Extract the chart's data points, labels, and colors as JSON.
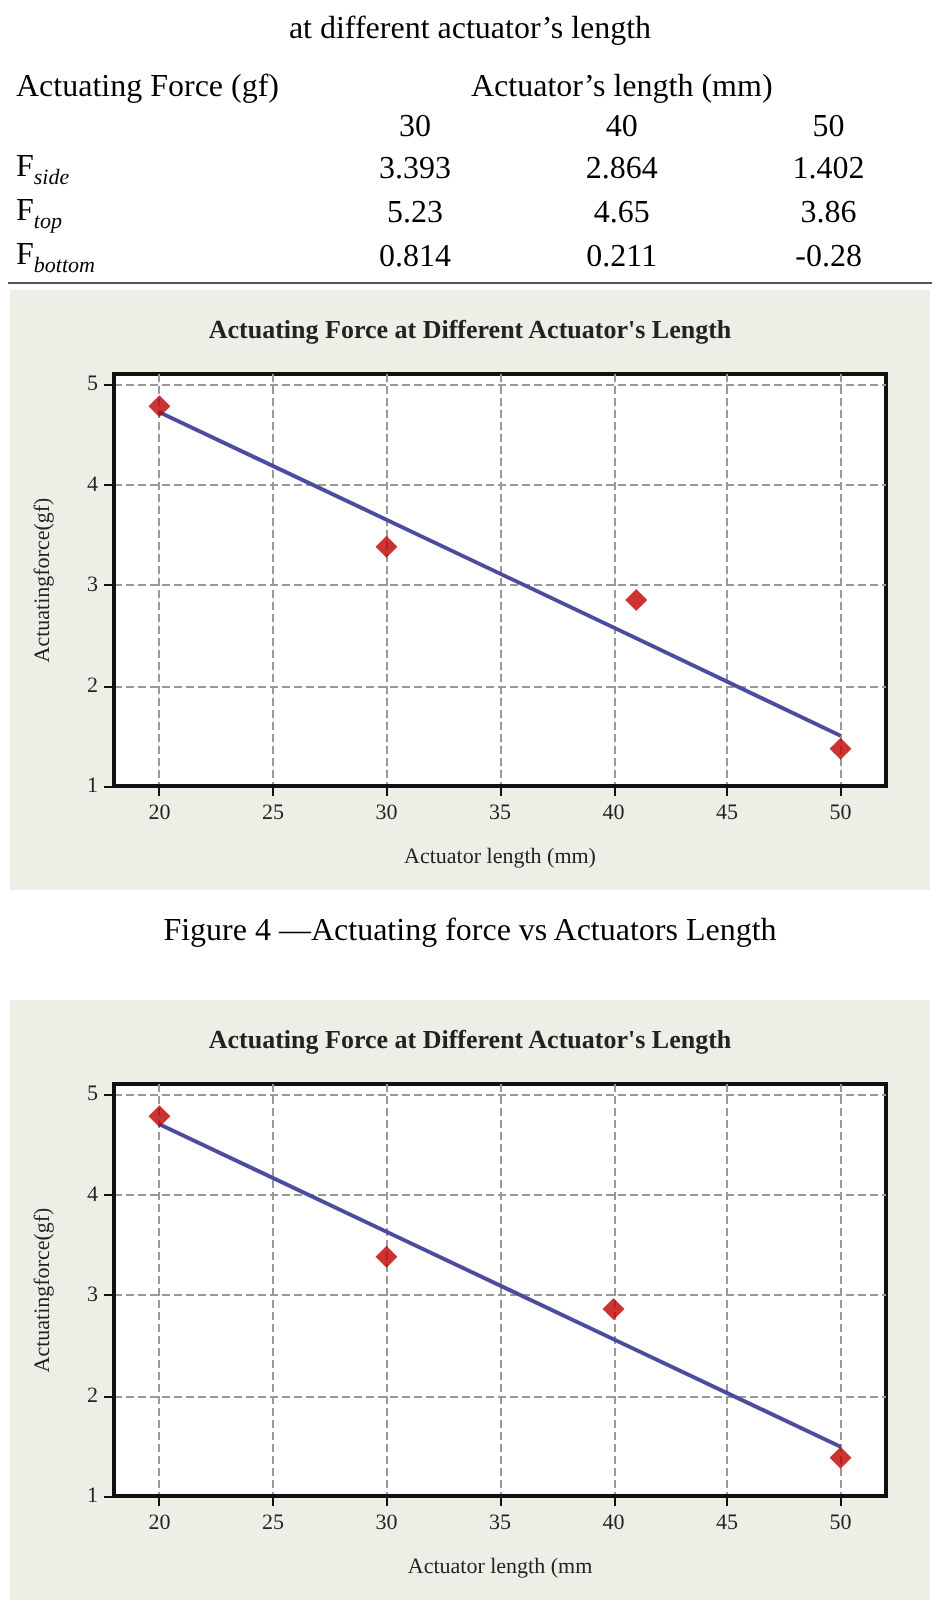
{
  "chart_data": [
    {
      "type": "heatmap",
      "title": "at different actuator’s length",
      "xlabel": "Actuator’s length (mm)",
      "ylabel": "Actuating Force (gf)",
      "categories": [
        "30",
        "40",
        "50"
      ],
      "y_categories": [
        "F$_{side}$",
        "F$_{top}$",
        "F$_{bottom}$"
      ],
      "data_labels": true,
      "cells": [
        [
          3.393,
          2.864,
          1.402
        ],
        [
          5.23,
          4.65,
          3.86
        ],
        [
          0.814,
          0.211,
          -0.28
        ]
      ]
    },
    {
      "type": "scatter",
      "title": "Actuating Force at Different Actuator's Length",
      "xlabel": "Actuator length (mm)",
      "ylabel": "Actuatingforce(gf)",
      "x": [
        20,
        30,
        41,
        50
      ],
      "marker": "diamond",
      "series": [
        {
          "type": "scatter",
          "color": "#c00000",
          "values": [
            4.78,
            3.38,
            2.85,
            1.37
          ]
        },
        {
          "type": "line",
          "values": [
            4.72,
            3.65,
            2.47,
            1.5
          ],
          "color": "#4b4ba0",
          "marker": "none"
        }
      ],
      "xlim": [
        18,
        52
      ],
      "xticks": [
        20,
        25,
        30,
        35,
        40,
        45,
        50
      ],
      "ylim": [
        1,
        5.1
      ],
      "yticks": [
        1,
        2,
        3,
        4,
        5
      ],
      "grid": true,
      "annotations": [
        "Figure 4 —Actuating force vs Actuators Length"
      ]
    },
    {
      "type": "scatter",
      "title": "Actuating Force at Different Actuator's Length",
      "xlabel": "Actuator length (mm",
      "ylabel": "Actuatingforce(gf)",
      "x": [
        20,
        30,
        40,
        50
      ],
      "marker": "diamond",
      "series": [
        {
          "type": "scatter",
          "color": "#c00000",
          "values": [
            4.78,
            3.38,
            2.86,
            1.38
          ]
        },
        {
          "type": "line",
          "values": [
            4.7,
            3.63,
            2.56,
            1.49
          ],
          "color": "#4b4ba0",
          "marker": "none"
        }
      ],
      "xlim": [
        18,
        52
      ],
      "xticks": [
        20,
        25,
        30,
        35,
        40,
        45,
        50
      ],
      "ylim": [
        1,
        5.1
      ],
      "yticks": [
        1,
        2,
        3,
        4,
        5
      ],
      "grid": true
    }
  ]
}
